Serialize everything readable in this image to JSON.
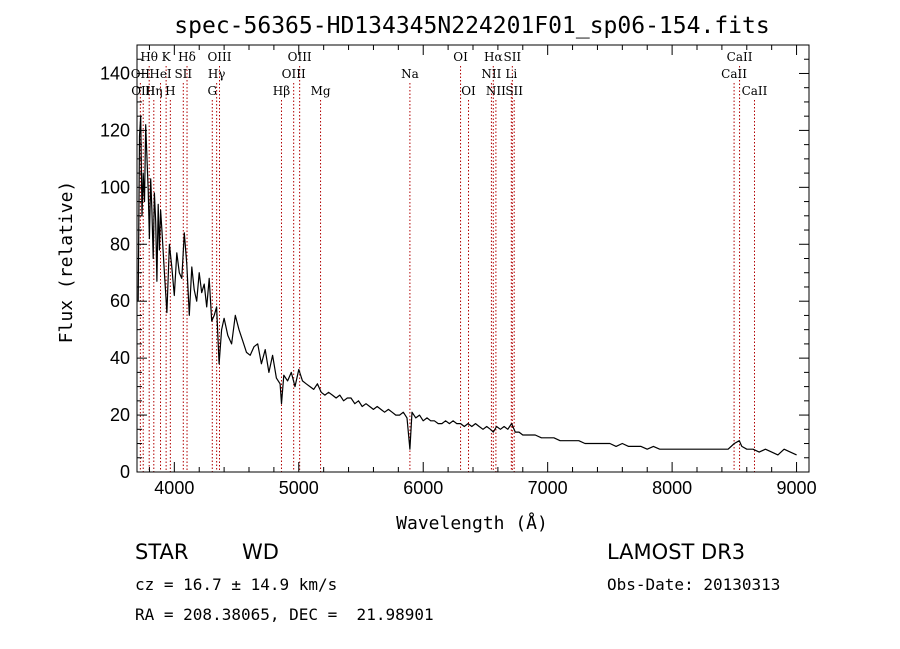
{
  "chart_data": {
    "type": "line",
    "title": "spec-56365-HD134345N224201F01_sp06-154.fits",
    "xlabel": "Wavelength (Å)",
    "ylabel": "Flux (relative)",
    "xlim": [
      3700,
      9100
    ],
    "ylim": [
      0,
      150
    ],
    "xticks": [
      4000,
      5000,
      6000,
      7000,
      8000,
      9000
    ],
    "yticks": [
      0,
      20,
      40,
      60,
      80,
      100,
      120,
      140
    ],
    "line_color": "#000000",
    "marker_color": "#b00000",
    "series": [
      {
        "name": "flux",
        "x": [
          3710,
          3720,
          3730,
          3740,
          3750,
          3760,
          3770,
          3780,
          3790,
          3800,
          3810,
          3820,
          3830,
          3840,
          3850,
          3860,
          3870,
          3880,
          3890,
          3900,
          3920,
          3940,
          3960,
          3980,
          4000,
          4020,
          4040,
          4060,
          4080,
          4100,
          4120,
          4140,
          4160,
          4180,
          4200,
          4220,
          4240,
          4260,
          4280,
          4300,
          4320,
          4340,
          4360,
          4380,
          4400,
          4430,
          4460,
          4490,
          4520,
          4550,
          4580,
          4610,
          4640,
          4670,
          4700,
          4730,
          4760,
          4790,
          4820,
          4850,
          4861,
          4880,
          4910,
          4940,
          4970,
          5000,
          5030,
          5060,
          5090,
          5120,
          5150,
          5180,
          5210,
          5240,
          5270,
          5300,
          5330,
          5360,
          5390,
          5420,
          5450,
          5480,
          5510,
          5540,
          5570,
          5600,
          5630,
          5660,
          5690,
          5720,
          5750,
          5780,
          5810,
          5840,
          5870,
          5893,
          5910,
          5940,
          5970,
          6000,
          6030,
          6060,
          6090,
          6120,
          6150,
          6180,
          6210,
          6240,
          6270,
          6300,
          6330,
          6360,
          6390,
          6420,
          6450,
          6480,
          6510,
          6540,
          6563,
          6590,
          6620,
          6650,
          6680,
          6710,
          6740,
          6770,
          6800,
          6850,
          6900,
          6950,
          7000,
          7050,
          7100,
          7150,
          7200,
          7250,
          7300,
          7350,
          7400,
          7450,
          7500,
          7550,
          7600,
          7650,
          7700,
          7750,
          7800,
          7850,
          7900,
          7950,
          8000,
          8050,
          8100,
          8150,
          8200,
          8250,
          8300,
          8350,
          8400,
          8450,
          8500,
          8540,
          8560,
          8600,
          8650,
          8700,
          8750,
          8800,
          8850,
          8900,
          8950,
          9000
        ],
        "y": [
          60,
          118,
          125,
          90,
          105,
          95,
          122,
          110,
          99,
          82,
          103,
          92,
          75,
          98,
          88,
          67,
          94,
          78,
          92,
          85,
          70,
          56,
          80,
          72,
          62,
          77,
          70,
          68,
          84,
          73,
          55,
          72,
          64,
          60,
          70,
          63,
          66,
          58,
          68,
          53,
          55,
          58,
          38,
          50,
          54,
          48,
          45,
          55,
          50,
          46,
          42,
          41,
          44,
          45,
          38,
          43,
          35,
          41,
          33,
          31,
          24,
          34,
          32,
          35,
          30,
          36,
          32,
          31,
          30,
          29,
          31,
          28,
          27,
          28,
          27,
          26,
          27,
          25,
          26,
          26,
          24,
          25,
          23,
          24,
          23,
          22,
          23,
          22,
          21,
          22,
          21,
          20,
          20,
          21,
          19,
          8,
          21,
          19,
          20,
          18,
          19,
          18,
          18,
          17,
          17,
          18,
          17,
          18,
          17,
          17,
          16,
          17,
          16,
          17,
          16,
          15,
          16,
          15,
          14,
          16,
          15,
          16,
          15,
          17,
          14,
          14,
          13,
          13,
          13,
          12,
          12,
          12,
          11,
          11,
          11,
          11,
          10,
          10,
          10,
          10,
          10,
          9,
          10,
          9,
          9,
          9,
          8,
          9,
          8,
          8,
          8,
          8,
          8,
          8,
          8,
          8,
          8,
          8,
          8,
          8,
          10,
          11,
          9,
          8,
          8,
          7,
          8,
          7,
          6,
          8,
          7,
          6
        ]
      }
    ],
    "spectral_lines": [
      {
        "label": "Hθ",
        "wl": 3798,
        "row": 1
      },
      {
        "label": "K",
        "wl": 3934,
        "row": 1
      },
      {
        "label": "Hδ",
        "wl": 4102,
        "row": 1
      },
      {
        "label": "OIII",
        "wl": 4363,
        "row": 1
      },
      {
        "label": "OIII",
        "wl": 5007,
        "row": 1
      },
      {
        "label": "OI",
        "wl": 6300,
        "row": 1
      },
      {
        "label": "Hα",
        "wl": 6563,
        "row": 1
      },
      {
        "label": "SII",
        "wl": 6716,
        "row": 1
      },
      {
        "label": "CaII",
        "wl": 8542,
        "row": 1
      },
      {
        "label": "OII",
        "wl": 3727,
        "row": 2
      },
      {
        "label": "HeI",
        "wl": 3889,
        "row": 2
      },
      {
        "label": "SII",
        "wl": 4072,
        "row": 2
      },
      {
        "label": "Hγ",
        "wl": 4340,
        "row": 2
      },
      {
        "label": "OIII",
        "wl": 4959,
        "row": 2
      },
      {
        "label": "Na",
        "wl": 5893,
        "row": 2
      },
      {
        "label": "NII",
        "wl": 6548,
        "row": 2
      },
      {
        "label": "Li",
        "wl": 6708,
        "row": 2
      },
      {
        "label": "CaII",
        "wl": 8498,
        "row": 2
      },
      {
        "label": "OIII",
        "wl": 3750,
        "row": 3
      },
      {
        "label": "Hη",
        "wl": 3835,
        "row": 3
      },
      {
        "label": "H",
        "wl": 3968,
        "row": 3
      },
      {
        "label": "G",
        "wl": 4305,
        "row": 3
      },
      {
        "label": "Hβ",
        "wl": 4861,
        "row": 3
      },
      {
        "label": "Mg",
        "wl": 5175,
        "row": 3
      },
      {
        "label": "OI",
        "wl": 6364,
        "row": 3
      },
      {
        "label": "NII",
        "wl": 6584,
        "row": 3
      },
      {
        "label": "SII",
        "wl": 6731,
        "row": 3
      },
      {
        "label": "CaII",
        "wl": 8662,
        "row": 3
      }
    ]
  },
  "info": {
    "class_label": "STAR",
    "subclass_label": "WD",
    "survey": "LAMOST DR3",
    "redshift": "cz = 16.7 ± 14.9 km/s",
    "obs_date": "Obs-Date: 20130313",
    "coords": "RA = 208.38065, DEC =  21.98901"
  }
}
